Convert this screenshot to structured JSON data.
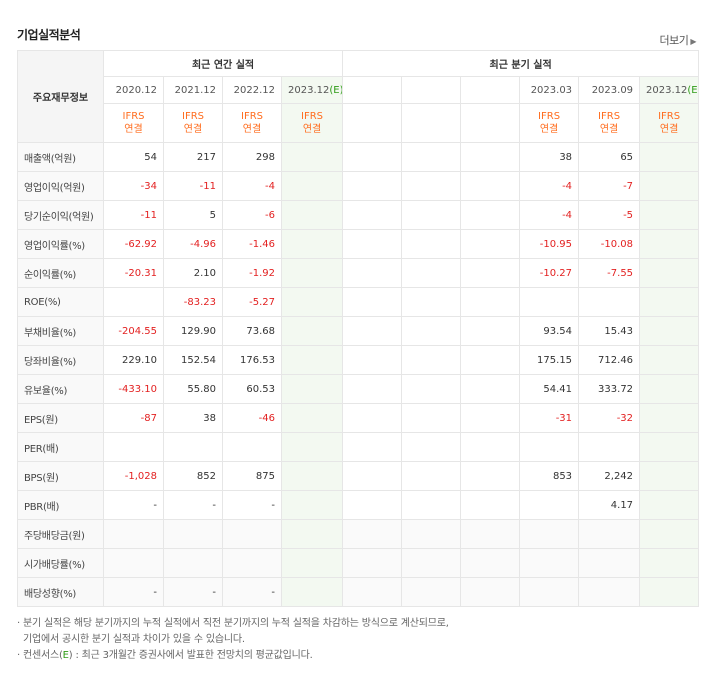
{
  "header": {
    "title": "기업실적분석",
    "more_label": "더보기"
  },
  "table": {
    "row_header_label": "주요재무정보",
    "annual_group": "최근 연간 실적",
    "quarterly_group": "최근 분기 실적",
    "annual_periods": [
      "2020.12",
      "2021.12",
      "2022.12",
      "2023.12"
    ],
    "quarterly_periods": [
      "2023.03",
      "2023.09",
      "2023.12"
    ],
    "estimate_marker": "(E)",
    "ifrs_top": "IFRS",
    "ifrs_bottom": "연결",
    "rows": [
      {
        "label": "매출액(억원)",
        "annual": [
          "54",
          "217",
          "298",
          ""
        ],
        "quarterly": [
          "38",
          "65",
          ""
        ]
      },
      {
        "label": "영업이익(억원)",
        "annual": [
          "-34",
          "-11",
          "-4",
          ""
        ],
        "quarterly": [
          "-4",
          "-7",
          ""
        ]
      },
      {
        "label": "당기순이익(억원)",
        "annual": [
          "-11",
          "5",
          "-6",
          ""
        ],
        "quarterly": [
          "-4",
          "-5",
          ""
        ]
      },
      {
        "label": "영업이익률(%)",
        "annual": [
          "-62.92",
          "-4.96",
          "-1.46",
          ""
        ],
        "quarterly": [
          "-10.95",
          "-10.08",
          ""
        ]
      },
      {
        "label": "순이익률(%)",
        "annual": [
          "-20.31",
          "2.10",
          "-1.92",
          ""
        ],
        "quarterly": [
          "-10.27",
          "-7.55",
          ""
        ]
      },
      {
        "label": "ROE(%)",
        "annual": [
          "",
          "-83.23",
          "-5.27",
          ""
        ],
        "quarterly": [
          "",
          "",
          ""
        ]
      },
      {
        "label": "부채비율(%)",
        "annual": [
          "-204.55",
          "129.90",
          "73.68",
          ""
        ],
        "quarterly": [
          "93.54",
          "15.43",
          ""
        ]
      },
      {
        "label": "당좌비율(%)",
        "annual": [
          "229.10",
          "152.54",
          "176.53",
          ""
        ],
        "quarterly": [
          "175.15",
          "712.46",
          ""
        ]
      },
      {
        "label": "유보율(%)",
        "annual": [
          "-433.10",
          "55.80",
          "60.53",
          ""
        ],
        "quarterly": [
          "54.41",
          "333.72",
          ""
        ]
      },
      {
        "label": "EPS(원)",
        "annual": [
          "-87",
          "38",
          "-46",
          ""
        ],
        "quarterly": [
          "-31",
          "-32",
          ""
        ]
      },
      {
        "label": "PER(배)",
        "annual": [
          "",
          "",
          "",
          ""
        ],
        "quarterly": [
          "",
          "",
          ""
        ]
      },
      {
        "label": "BPS(원)",
        "annual": [
          "-1,028",
          "852",
          "875",
          ""
        ],
        "quarterly": [
          "853",
          "2,242",
          ""
        ]
      },
      {
        "label": "PBR(배)",
        "annual": [
          "-",
          "-",
          "-",
          ""
        ],
        "quarterly": [
          "",
          "4.17",
          ""
        ]
      },
      {
        "label": "주당배당금(원)",
        "annual": [
          "",
          "",
          "",
          ""
        ],
        "quarterly": [
          "",
          "",
          ""
        ]
      },
      {
        "label": "시가배당률(%)",
        "annual": [
          "",
          "",
          "",
          ""
        ],
        "quarterly": [
          "",
          "",
          ""
        ]
      },
      {
        "label": "배당성향(%)",
        "annual": [
          "-",
          "-",
          "-",
          ""
        ],
        "quarterly": [
          "",
          "",
          ""
        ]
      }
    ]
  },
  "notes": {
    "line1": "분기 실적은 해당 분기까지의 누적 실적에서 직전 분기까지의 누적 실적을 차감하는 방식으로 계산되므로,",
    "line2": "기업에서 공시한 분기 실적과 차이가 있을 수 있습니다.",
    "line3_prefix": "컨센서스(",
    "line3_e": "E",
    "line3_suffix": ") : 최근 3개월간 증권사에서 발표한 전망치의 평균값입니다."
  },
  "colors": {
    "negative": "#e32121",
    "ifrs": "#ff6d1f",
    "estimate": "#2e9b16",
    "estimate_bg": "#f3f9f1"
  }
}
